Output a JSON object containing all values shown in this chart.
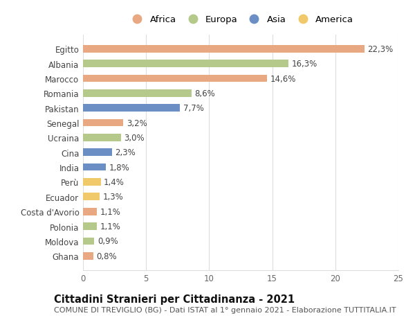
{
  "countries": [
    "Egitto",
    "Albania",
    "Marocco",
    "Romania",
    "Pakistan",
    "Senegal",
    "Ucraina",
    "Cina",
    "India",
    "Perù",
    "Ecuador",
    "Costa d'Avorio",
    "Polonia",
    "Moldova",
    "Ghana"
  ],
  "values": [
    22.3,
    16.3,
    14.6,
    8.6,
    7.7,
    3.2,
    3.0,
    2.3,
    1.8,
    1.4,
    1.3,
    1.1,
    1.1,
    0.9,
    0.8
  ],
  "labels": [
    "22,3%",
    "16,3%",
    "14,6%",
    "8,6%",
    "7,7%",
    "3,2%",
    "3,0%",
    "2,3%",
    "1,8%",
    "1,4%",
    "1,3%",
    "1,1%",
    "1,1%",
    "0,9%",
    "0,8%"
  ],
  "continents": [
    "Africa",
    "Europa",
    "Africa",
    "Europa",
    "Asia",
    "Africa",
    "Europa",
    "Asia",
    "Asia",
    "America",
    "America",
    "Africa",
    "Europa",
    "Europa",
    "Africa"
  ],
  "colors": {
    "Africa": "#E8A882",
    "Europa": "#B5C98A",
    "Asia": "#6B8FC4",
    "America": "#F0C96A"
  },
  "legend_order": [
    "Africa",
    "Europa",
    "Asia",
    "America"
  ],
  "title_bold": "Cittadini Stranieri per Cittadinanza - 2021",
  "subtitle": "COMUNE DI TREVIGLIO (BG) - Dati ISTAT al 1° gennaio 2021 - Elaborazione TUTTITALIA.IT",
  "xlim": [
    0,
    25
  ],
  "xticks": [
    0,
    5,
    10,
    15,
    20,
    25
  ],
  "background_color": "#FFFFFF",
  "bar_height": 0.5,
  "grid_color": "#DDDDDD",
  "label_fontsize": 8.5,
  "tick_fontsize": 8.5,
  "title_fontsize": 10.5,
  "subtitle_fontsize": 8,
  "legend_fontsize": 9.5
}
